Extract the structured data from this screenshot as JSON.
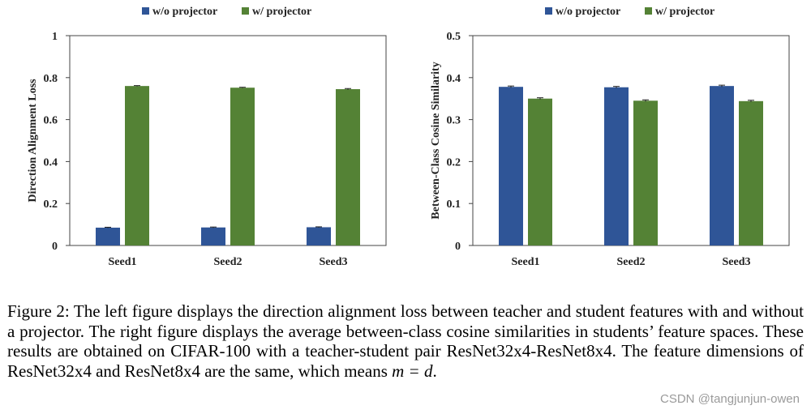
{
  "chart_data": [
    {
      "type": "bar",
      "title": "",
      "xlabel": "",
      "ylabel": "Direction Alignment Loss",
      "categories": [
        "Seed1",
        "Seed2",
        "Seed3"
      ],
      "ylim": [
        0,
        1
      ],
      "yticks": [
        "0",
        "0.2",
        "0.4",
        "0.6",
        "0.8",
        "1"
      ],
      "legend_position": "top",
      "series": [
        {
          "name": "w/o projector",
          "color": "#2f5597",
          "values": [
            0.085,
            0.086,
            0.087
          ],
          "errors": [
            0.002,
            0.002,
            0.002
          ]
        },
        {
          "name": "w/ projector",
          "color": "#548235",
          "values": [
            0.76,
            0.752,
            0.745
          ],
          "errors": [
            0.002,
            0.002,
            0.003
          ]
        }
      ]
    },
    {
      "type": "bar",
      "title": "",
      "xlabel": "",
      "ylabel": "Between-Class Cosine Similarity",
      "categories": [
        "Seed1",
        "Seed2",
        "Seed3"
      ],
      "ylim": [
        0,
        0.5
      ],
      "yticks": [
        "0",
        "0.1",
        "0.2",
        "0.3",
        "0.4",
        "0.5"
      ],
      "legend_position": "top",
      "series": [
        {
          "name": "w/o projector",
          "color": "#2f5597",
          "values": [
            0.378,
            0.377,
            0.38
          ],
          "errors": [
            0.002,
            0.002,
            0.002
          ]
        },
        {
          "name": "w/ projector",
          "color": "#548235",
          "values": [
            0.35,
            0.345,
            0.344
          ],
          "errors": [
            0.002,
            0.002,
            0.002
          ]
        }
      ]
    }
  ],
  "caption": {
    "text": "Figure 2: The left figure displays the direction alignment loss between teacher and student features with and without a projector. The right figure displays the average between-class cosine similarities in students’ feature spaces. These results are obtained on CIFAR-100 with a teacher-student pair ResNet32x4-ResNet8x4. The feature dimensions of ResNet32x4 and ResNet8x4 are the same, which means ",
    "math": "m = d",
    "end": "."
  },
  "watermark": "CSDN @tangjunjun-owen"
}
